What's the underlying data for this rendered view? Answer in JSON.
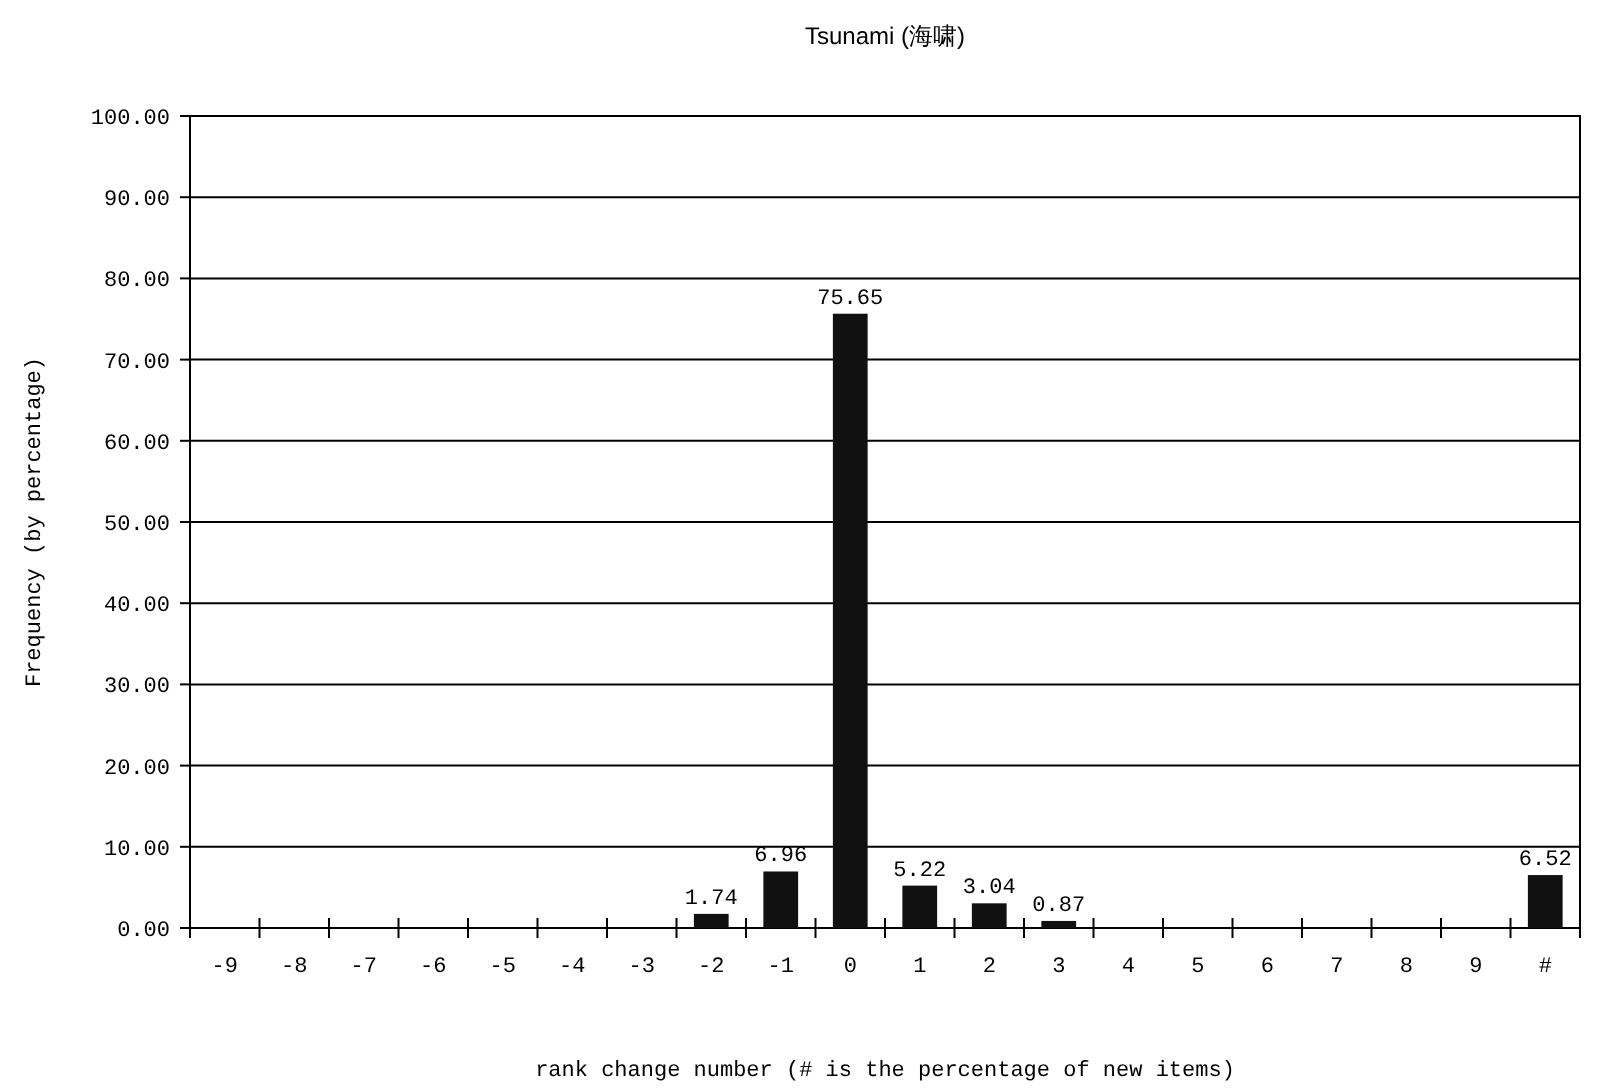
{
  "chart_data": {
    "type": "bar",
    "title": "Tsunami (海啸)",
    "xlabel": "rank change number (# is the percentage of new items)",
    "ylabel": "Frequency (by percentage)",
    "categories": [
      "-9",
      "-8",
      "-7",
      "-6",
      "-5",
      "-4",
      "-3",
      "-2",
      "-1",
      "0",
      "1",
      "2",
      "3",
      "4",
      "5",
      "6",
      "7",
      "8",
      "9",
      "#"
    ],
    "series": [
      {
        "color": "#111111",
        "values": [
          0,
          0,
          0,
          0,
          0,
          0,
          0,
          1.74,
          6.96,
          75.65,
          5.22,
          3.04,
          0.87,
          0,
          0,
          0,
          0,
          0,
          0,
          6.52
        ],
        "value_labels": [
          null,
          null,
          null,
          null,
          null,
          null,
          null,
          "1.74",
          "6.96",
          "75.65",
          "5.22",
          "3.04",
          "0.87",
          null,
          null,
          null,
          null,
          null,
          null,
          "6.52"
        ]
      }
    ],
    "ylim": [
      0,
      100
    ],
    "yticks": [
      {
        "value": 0,
        "label": "0.00"
      },
      {
        "value": 10,
        "label": "10.00"
      },
      {
        "value": 20,
        "label": "20.00"
      },
      {
        "value": 30,
        "label": "30.00"
      },
      {
        "value": 40,
        "label": "40.00"
      },
      {
        "value": 50,
        "label": "50.00"
      },
      {
        "value": 60,
        "label": "60.00"
      },
      {
        "value": 70,
        "label": "70.00"
      },
      {
        "value": 80,
        "label": "80.00"
      },
      {
        "value": 90,
        "label": "90.00"
      },
      {
        "value": 100,
        "label": "100.00"
      }
    ],
    "grid": "y"
  }
}
